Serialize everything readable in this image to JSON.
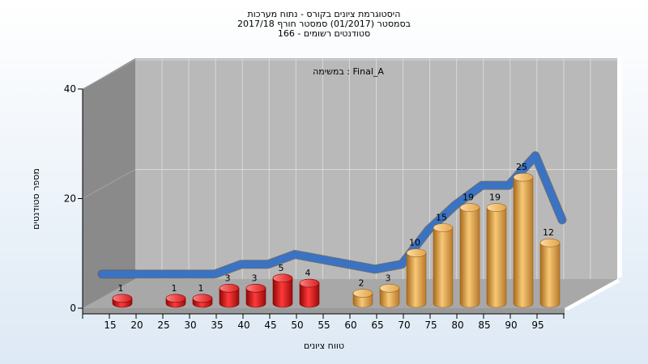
{
  "chart_data": {
    "type": "bar",
    "title_lines": [
      "היסטוגרמת ציונים בקורס - נתוח מערכות",
      "בסמסטר  (01/2017)  סמסטר חורף 2017/18",
      "סטודנטים רשומים - 166"
    ],
    "legend_text": "במשימה : Final_A",
    "xlabel": "טווח ציונים",
    "ylabel": "מספר סטודנטים",
    "ylim": [
      0,
      40
    ],
    "yticks": [
      0,
      20,
      40
    ],
    "xticks": [
      15,
      20,
      25,
      30,
      35,
      40,
      45,
      50,
      55,
      60,
      65,
      70,
      75,
      80,
      85,
      90,
      95
    ],
    "bars": [
      {
        "label": "15",
        "value": 1,
        "group": "fail"
      },
      {
        "label": "25",
        "value": 1,
        "group": "fail"
      },
      {
        "label": "30",
        "value": 1,
        "group": "fail"
      },
      {
        "label": "35",
        "value": 3,
        "group": "fail"
      },
      {
        "label": "40",
        "value": 3,
        "group": "fail"
      },
      {
        "label": "45",
        "value": 5,
        "group": "fail"
      },
      {
        "label": "50",
        "value": 4,
        "group": "fail"
      },
      {
        "label": "60",
        "value": 2,
        "group": "pass"
      },
      {
        "label": "65",
        "value": 3,
        "group": "pass"
      },
      {
        "label": "70",
        "value": 10,
        "group": "pass"
      },
      {
        "label": "75",
        "value": 15,
        "group": "pass"
      },
      {
        "label": "80",
        "value": 19,
        "group": "pass"
      },
      {
        "label": "85",
        "value": 19,
        "group": "pass"
      },
      {
        "label": "90",
        "value": 25,
        "group": "pass"
      },
      {
        "label": "95",
        "value": 12,
        "group": "pass"
      }
    ],
    "colors": {
      "fail": "#e41c1c",
      "pass": "#e9ad52",
      "curve": "#3a73c4",
      "back_wall": "#b9b9b9",
      "side_wall": "#8a8a8a",
      "floor": "#a8a8a8",
      "frame": "#ffffff"
    },
    "grid": true
  }
}
